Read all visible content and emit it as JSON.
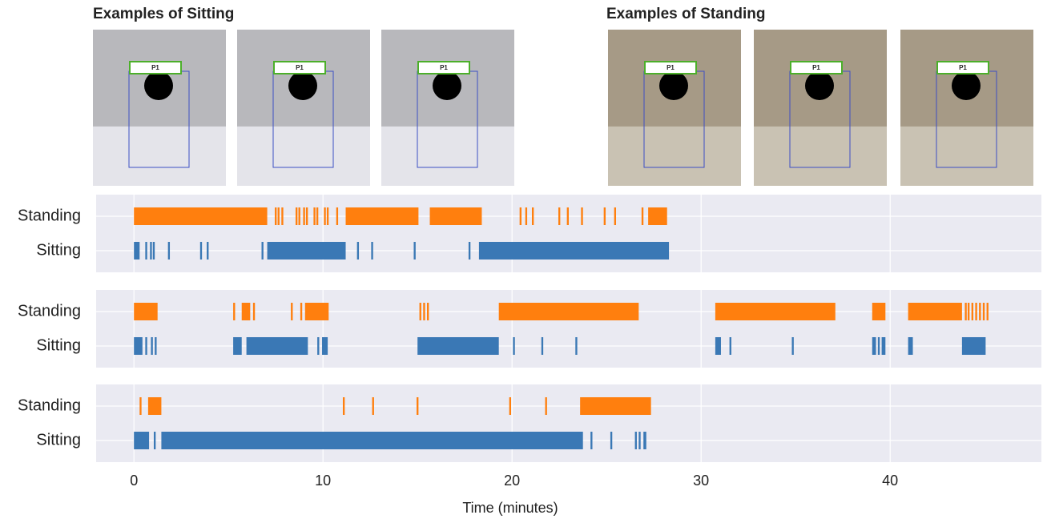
{
  "examples": [
    {
      "title": "Examples of Sitting",
      "tags": [
        "P1",
        "P1",
        "P1"
      ]
    },
    {
      "title": "Examples of Standing",
      "tags": [
        "P1",
        "P1",
        "P1"
      ]
    }
  ],
  "chart_data": [
    {
      "type": "timeline",
      "categories": [
        "Standing",
        "Sitting"
      ],
      "xlim": [
        -2,
        48
      ],
      "xticks": [
        0,
        10,
        20,
        30,
        40
      ],
      "grid": true,
      "series": [
        {
          "color": "#ff7f0e",
          "segments": [
            [
              0,
              7.05
            ],
            [
              7.45,
              7.55
            ],
            [
              7.6,
              7.7
            ],
            [
              7.8,
              7.9
            ],
            [
              8.55,
              8.65
            ],
            [
              8.7,
              8.8
            ],
            [
              8.95,
              9.05
            ],
            [
              9.1,
              9.2
            ],
            [
              9.5,
              9.6
            ],
            [
              9.65,
              9.75
            ],
            [
              10.05,
              10.15
            ],
            [
              10.2,
              10.3
            ],
            [
              10.7,
              10.8
            ],
            [
              11.2,
              15.05
            ],
            [
              15.65,
              18.4
            ],
            [
              20.4,
              20.5
            ],
            [
              20.7,
              20.8
            ],
            [
              21.05,
              21.15
            ],
            [
              22.45,
              22.55
            ],
            [
              22.9,
              23.0
            ],
            [
              23.65,
              23.75
            ],
            [
              24.85,
              24.95
            ],
            [
              25.4,
              25.5
            ],
            [
              26.85,
              26.95
            ],
            [
              27.2,
              28.2
            ]
          ]
        },
        {
          "color": "#3a78b5",
          "segments": [
            [
              0,
              0.3
            ],
            [
              0.6,
              0.7
            ],
            [
              0.85,
              0.95
            ],
            [
              1.0,
              1.1
            ],
            [
              1.8,
              1.9
            ],
            [
              3.5,
              3.6
            ],
            [
              3.85,
              3.95
            ],
            [
              6.75,
              6.85
            ],
            [
              7.05,
              11.2
            ],
            [
              11.8,
              11.9
            ],
            [
              12.55,
              12.65
            ],
            [
              14.8,
              14.9
            ],
            [
              17.7,
              17.8
            ],
            [
              18.25,
              28.3
            ]
          ]
        }
      ]
    },
    {
      "type": "timeline",
      "categories": [
        "Standing",
        "Sitting"
      ],
      "xlim": [
        -2,
        48
      ],
      "xticks": [
        0,
        10,
        20,
        30,
        40
      ],
      "grid": true,
      "series": [
        {
          "color": "#ff7f0e",
          "segments": [
            [
              0,
              1.25
            ],
            [
              5.25,
              5.35
            ],
            [
              5.7,
              6.15
            ],
            [
              6.3,
              6.4
            ],
            [
              8.3,
              8.4
            ],
            [
              8.8,
              8.9
            ],
            [
              9.05,
              10.3
            ],
            [
              15.1,
              15.2
            ],
            [
              15.3,
              15.4
            ],
            [
              15.5,
              15.6
            ],
            [
              19.3,
              26.7
            ],
            [
              30.75,
              37.1
            ],
            [
              39.05,
              39.75
            ],
            [
              40.95,
              43.8
            ],
            [
              43.95,
              44.05
            ],
            [
              44.1,
              44.2
            ],
            [
              44.3,
              44.4
            ],
            [
              44.5,
              44.6
            ],
            [
              44.7,
              44.8
            ],
            [
              44.9,
              45.0
            ],
            [
              45.1,
              45.2
            ]
          ]
        },
        {
          "color": "#3a78b5",
          "segments": [
            [
              0,
              0.45
            ],
            [
              0.6,
              0.7
            ],
            [
              0.9,
              1.0
            ],
            [
              1.1,
              1.2
            ],
            [
              5.25,
              5.7
            ],
            [
              5.95,
              9.2
            ],
            [
              9.7,
              9.8
            ],
            [
              9.95,
              10.25
            ],
            [
              15.0,
              19.3
            ],
            [
              20.05,
              20.15
            ],
            [
              21.55,
              21.65
            ],
            [
              23.35,
              23.45
            ],
            [
              30.75,
              31.05
            ],
            [
              31.5,
              31.6
            ],
            [
              34.8,
              34.9
            ],
            [
              39.05,
              39.25
            ],
            [
              39.35,
              39.45
            ],
            [
              39.55,
              39.75
            ],
            [
              40.95,
              41.2
            ],
            [
              43.8,
              45.05
            ]
          ]
        }
      ]
    },
    {
      "type": "timeline",
      "categories": [
        "Standing",
        "Sitting"
      ],
      "xlim": [
        -2,
        48
      ],
      "xticks": [
        0,
        10,
        20,
        30,
        40
      ],
      "grid": true,
      "xlabel": "Time (minutes)",
      "series": [
        {
          "color": "#ff7f0e",
          "segments": [
            [
              0.3,
              0.4
            ],
            [
              0.75,
              1.45
            ],
            [
              11.05,
              11.15
            ],
            [
              12.6,
              12.7
            ],
            [
              14.95,
              15.05
            ],
            [
              19.85,
              19.95
            ],
            [
              21.75,
              21.85
            ],
            [
              23.6,
              27.35
            ]
          ]
        },
        {
          "color": "#3a78b5",
          "segments": [
            [
              0,
              0.8
            ],
            [
              1.05,
              1.15
            ],
            [
              1.45,
              23.75
            ],
            [
              24.15,
              24.25
            ],
            [
              25.2,
              25.3
            ],
            [
              26.5,
              26.6
            ],
            [
              26.7,
              26.8
            ],
            [
              26.95,
              27.1
            ]
          ]
        }
      ]
    }
  ]
}
